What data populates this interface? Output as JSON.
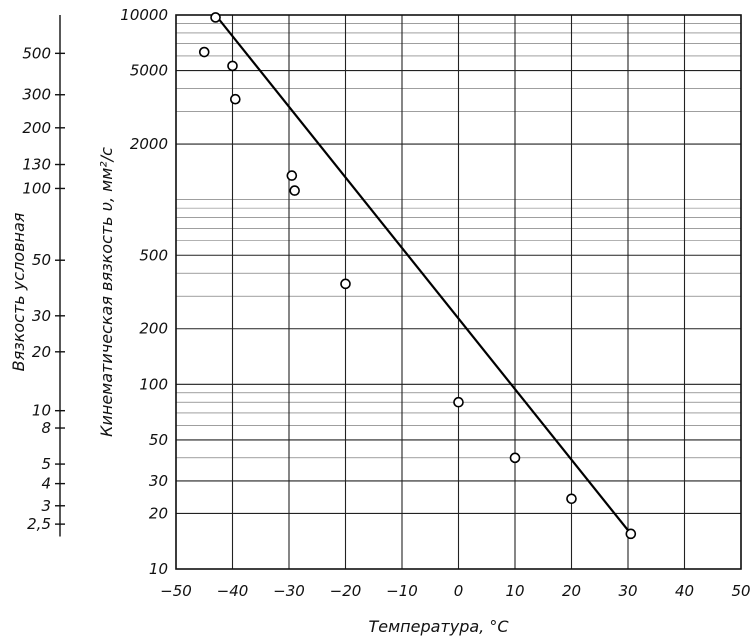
{
  "chart_data": {
    "type": "line",
    "title": "",
    "xlabel": "Температура, °С",
    "ylabel_kinematic": "Кинематическая вязкость υ, мм²/с",
    "ylabel_conventional": "Вязкость условная",
    "x_ticks": [
      -50,
      -40,
      -30,
      -20,
      -10,
      0,
      10,
      20,
      30,
      40,
      50
    ],
    "x_tick_labels": [
      "−50",
      "−40",
      "−30",
      "−20",
      "−10",
      "0",
      "10",
      "20",
      "30",
      "40",
      "50"
    ],
    "xlim": [
      -50,
      50
    ],
    "ylim": [
      10,
      10000
    ],
    "yscale": "log",
    "y_ticks_kinematic": [
      10,
      20,
      30,
      50,
      100,
      200,
      500,
      2000,
      5000,
      10000
    ],
    "y_tick_labels_kinematic": [
      "10",
      "20",
      "30",
      "50",
      "100",
      "200",
      "500",
      "2000",
      "5000",
      "10000"
    ],
    "y_ticks_conventional": [
      {
        "label": "500",
        "kinematic": 6200
      },
      {
        "label": "300",
        "kinematic": 3700
      },
      {
        "label": "200",
        "kinematic": 2450
      },
      {
        "label": "130",
        "kinematic": 1550
      },
      {
        "label": "100",
        "kinematic": 1150
      },
      {
        "label": "50",
        "kinematic": 470
      },
      {
        "label": "30",
        "kinematic": 235
      },
      {
        "label": "20",
        "kinematic": 150
      },
      {
        "label": "10",
        "kinematic": 72
      },
      {
        "label": "8",
        "kinematic": 58
      },
      {
        "label": "5",
        "kinematic": 37
      },
      {
        "label": "4",
        "kinematic": 29
      },
      {
        "label": "3",
        "kinematic": 22
      },
      {
        "label": "2,5",
        "kinematic": 17.5
      }
    ],
    "grid": true,
    "series": [
      {
        "style": "points",
        "x": [
          -45,
          -43,
          -40,
          -39.5,
          -29.5,
          -29,
          -20,
          0,
          10,
          20,
          30.5
        ],
        "y": [
          6300,
          9700,
          5300,
          3500,
          1350,
          1120,
          350,
          80,
          40,
          24,
          15.5
        ]
      },
      {
        "style": "line",
        "x": [
          -43,
          30.5
        ],
        "y": [
          10000,
          15.5
        ]
      }
    ]
  }
}
